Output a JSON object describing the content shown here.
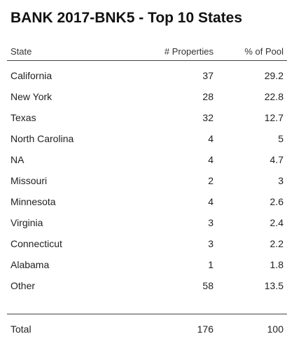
{
  "title": "BANK 2017-BNK5 - Top 10 States",
  "columns": {
    "state": "State",
    "properties": "# Properties",
    "pool": "% of Pool"
  },
  "rows": [
    {
      "state": "California",
      "properties": "37",
      "pool": "29.2"
    },
    {
      "state": "New York",
      "properties": "28",
      "pool": "22.8"
    },
    {
      "state": "Texas",
      "properties": "32",
      "pool": "12.7"
    },
    {
      "state": "North Carolina",
      "properties": "4",
      "pool": "5"
    },
    {
      "state": "NA",
      "properties": "4",
      "pool": "4.7"
    },
    {
      "state": "Missouri",
      "properties": "2",
      "pool": "3"
    },
    {
      "state": "Minnesota",
      "properties": "4",
      "pool": "2.6"
    },
    {
      "state": "Virginia",
      "properties": "3",
      "pool": "2.4"
    },
    {
      "state": "Connecticut",
      "properties": "3",
      "pool": "2.2"
    },
    {
      "state": "Alabama",
      "properties": "1",
      "pool": "1.8"
    },
    {
      "state": "Other",
      "properties": "58",
      "pool": "13.5"
    }
  ],
  "total": {
    "state": "Total",
    "properties": "176",
    "pool": "100"
  }
}
